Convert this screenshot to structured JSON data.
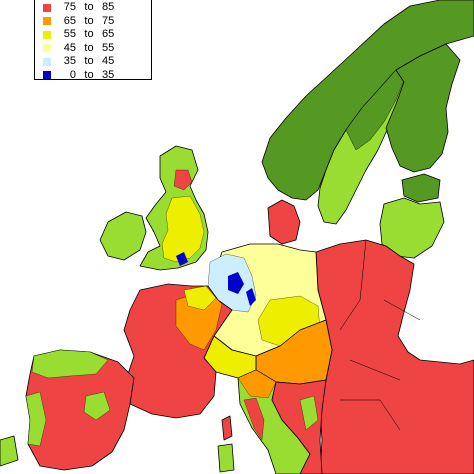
{
  "legend": {
    "items": [
      {
        "low": "75",
        "to": "to",
        "high": "85",
        "color": "#ee4444"
      },
      {
        "low": "65",
        "to": "to",
        "high": "75",
        "color": "#ff9900"
      },
      {
        "low": "55",
        "to": "to",
        "high": "65",
        "color": "#eeee00"
      },
      {
        "low": "45",
        "to": "to",
        "high": "55",
        "color": "#ffff99"
      },
      {
        "low": "35",
        "to": "to",
        "high": "45",
        "color": "#cceeff"
      },
      {
        "low": "0",
        "to": "to",
        "high": "35",
        "color": "#0000cc"
      }
    ]
  },
  "colors": {
    "sea": "#ffffff",
    "red": "#ee4444",
    "orange": "#ff9900",
    "yellow": "#eeee00",
    "light_yellow": "#ffff99",
    "light_blue": "#cceeff",
    "dark_blue": "#0000cc",
    "light_green": "#99dd33",
    "dark_green": "#559922"
  }
}
